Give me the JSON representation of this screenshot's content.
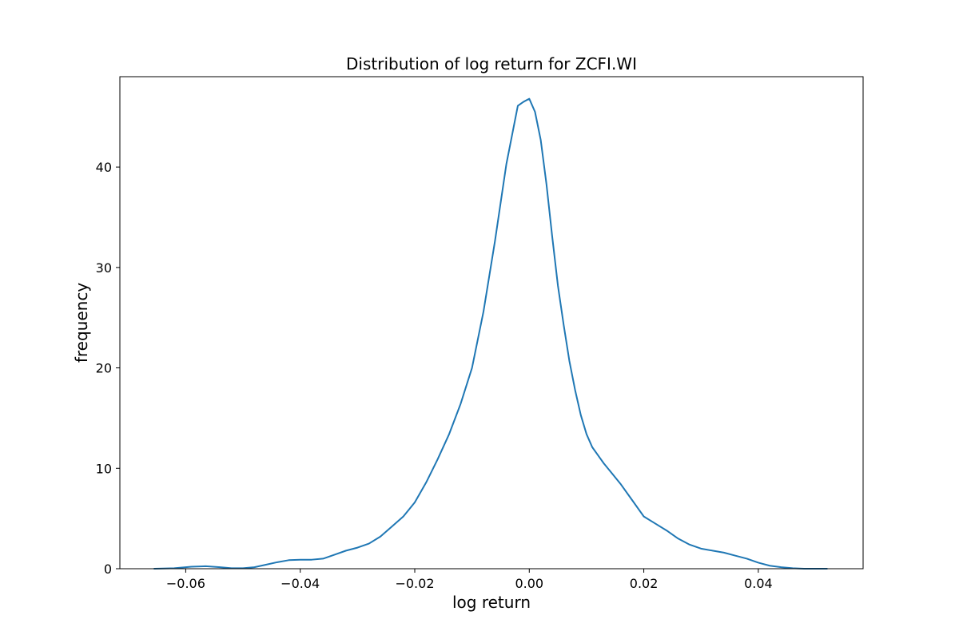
{
  "chart_data": {
    "type": "line",
    "title": "Distribution of log return for ZCFI.WI",
    "xlabel": "log return",
    "ylabel": "frequency",
    "xlim": [
      -0.0715,
      0.0583
    ],
    "ylim": [
      0,
      49
    ],
    "grid": false,
    "legend": "none",
    "line_color": "#1f77b4",
    "x_ticks": [
      -0.06,
      -0.04,
      -0.02,
      0.0,
      0.02,
      0.04
    ],
    "x_tick_labels": [
      "−0.06",
      "−0.04",
      "−0.02",
      "0.00",
      "0.02",
      "0.04"
    ],
    "y_ticks": [
      0,
      10,
      20,
      30,
      40
    ],
    "y_tick_labels": [
      "0",
      "10",
      "20",
      "30",
      "40"
    ],
    "series": [
      {
        "x": [
          -0.0655,
          -0.062,
          -0.059,
          -0.0565,
          -0.054,
          -0.052,
          -0.05,
          -0.048,
          -0.046,
          -0.044,
          -0.042,
          -0.04,
          -0.038,
          -0.036,
          -0.034,
          -0.032,
          -0.03,
          -0.028,
          -0.026,
          -0.024,
          -0.022,
          -0.02,
          -0.018,
          -0.016,
          -0.014,
          -0.012,
          -0.01,
          -0.008,
          -0.006,
          -0.004,
          -0.002,
          -0.001,
          0.0,
          0.001,
          0.002,
          0.003,
          0.004,
          0.005,
          0.006,
          0.007,
          0.008,
          0.009,
          0.01,
          0.011,
          0.012,
          0.013,
          0.014,
          0.016,
          0.018,
          0.02,
          0.022,
          0.024,
          0.026,
          0.028,
          0.03,
          0.032,
          0.034,
          0.036,
          0.038,
          0.04,
          0.042,
          0.044,
          0.046,
          0.048,
          0.05,
          0.052
        ],
        "y": [
          0.0,
          0.05,
          0.2,
          0.25,
          0.15,
          0.05,
          0.05,
          0.15,
          0.4,
          0.65,
          0.85,
          0.9,
          0.9,
          1.0,
          1.4,
          1.8,
          2.1,
          2.5,
          3.2,
          4.2,
          5.2,
          6.6,
          8.6,
          10.9,
          13.4,
          16.4,
          20.0,
          25.6,
          32.6,
          40.3,
          46.1,
          46.5,
          46.8,
          45.5,
          42.7,
          38.3,
          33.1,
          28.2,
          24.3,
          20.7,
          17.8,
          15.3,
          13.4,
          12.1,
          11.3,
          10.5,
          9.8,
          8.4,
          6.8,
          5.2,
          4.5,
          3.8,
          3.0,
          2.4,
          2.0,
          1.8,
          1.6,
          1.3,
          1.0,
          0.6,
          0.3,
          0.15,
          0.05,
          0.0,
          0.0,
          0.0
        ]
      }
    ]
  }
}
